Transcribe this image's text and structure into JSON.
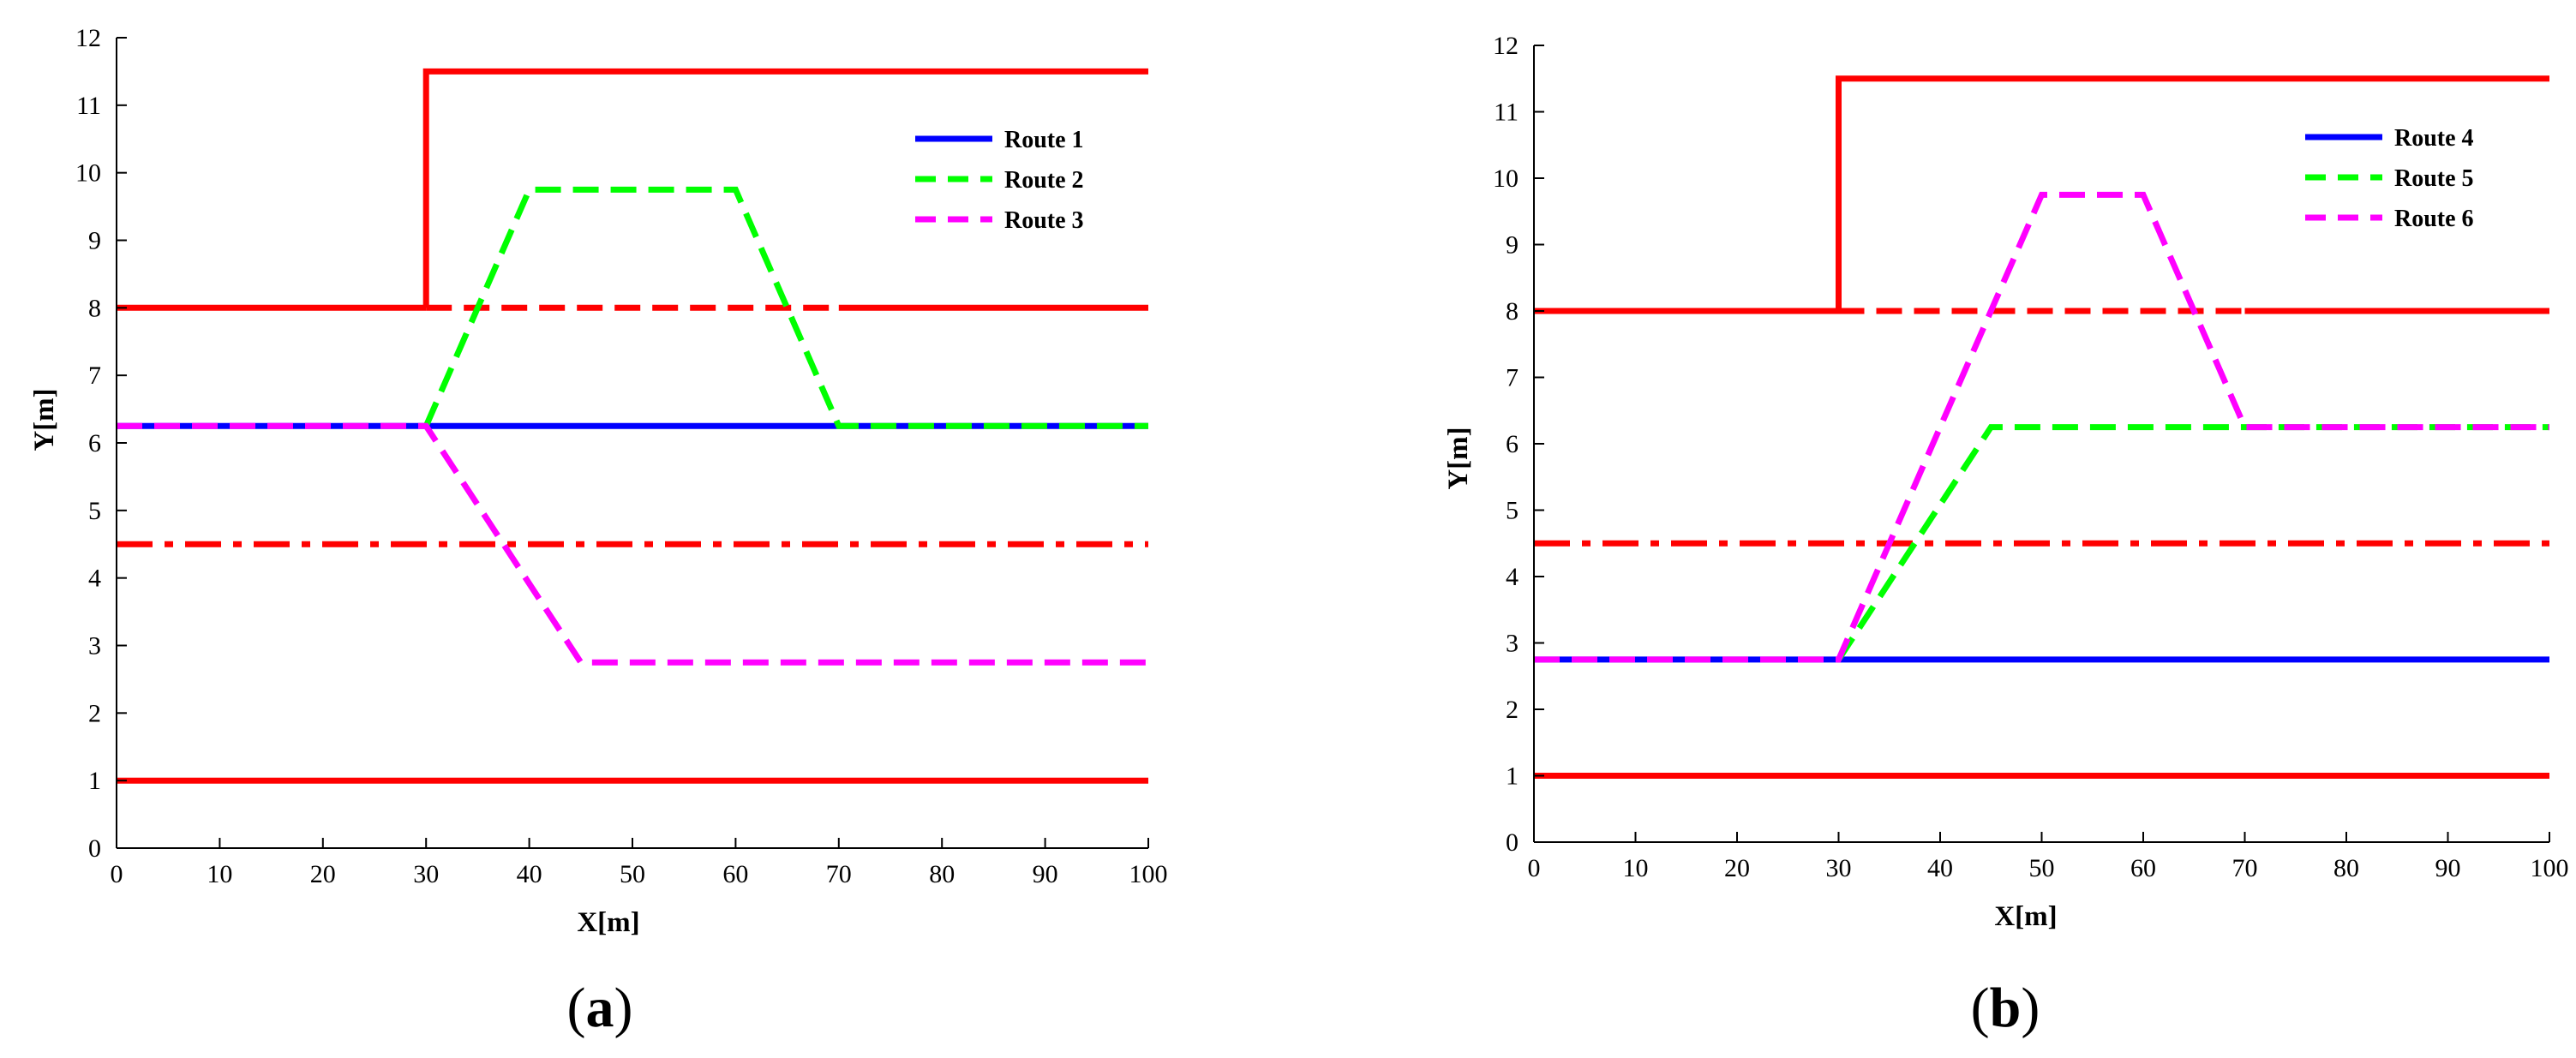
{
  "chart_data": [
    {
      "type": "line",
      "panel_label": "a",
      "xlabel": "X[m]",
      "ylabel": "Y[m]",
      "xlim": [
        0,
        100
      ],
      "ylim": [
        0,
        12
      ],
      "xticks": [
        0,
        10,
        20,
        30,
        40,
        50,
        60,
        70,
        80,
        90,
        100
      ],
      "yticks": [
        0,
        1,
        2,
        3,
        4,
        5,
        6,
        7,
        8,
        9,
        10,
        11,
        12
      ],
      "grid": false,
      "legend_position": "top-right",
      "lane_lines": [
        {
          "style": "solid",
          "color": "#ff0000",
          "x": [
            0,
            100
          ],
          "y": [
            1,
            1
          ]
        },
        {
          "style": "dashdot",
          "color": "#ff0000",
          "x": [
            0,
            100
          ],
          "y": [
            4.5,
            4.5
          ]
        },
        {
          "style": "solid",
          "color": "#ff0000",
          "x": [
            0,
            30
          ],
          "y": [
            8,
            8
          ]
        },
        {
          "style": "dashed",
          "color": "#ff0000",
          "x": [
            30,
            70
          ],
          "y": [
            8,
            8
          ]
        },
        {
          "style": "solid",
          "color": "#ff0000",
          "x": [
            70,
            100
          ],
          "y": [
            8,
            8
          ]
        },
        {
          "style": "solid",
          "color": "#ff0000",
          "x": [
            30,
            30,
            100
          ],
          "y": [
            8,
            11.5,
            11.5
          ]
        }
      ],
      "series": [
        {
          "name": "Route 1",
          "color": "#0000ff",
          "style": "solid",
          "x": [
            0,
            100
          ],
          "y": [
            6.25,
            6.25
          ]
        },
        {
          "name": "Route 2",
          "color": "#00ff00",
          "style": "dashed",
          "x": [
            30,
            40,
            60,
            70,
            100
          ],
          "y": [
            6.25,
            9.75,
            9.75,
            6.25,
            6.25
          ]
        },
        {
          "name": "Route 3",
          "color": "#ff00ff",
          "style": "dashed",
          "x": [
            0,
            30,
            45,
            100
          ],
          "y": [
            6.25,
            6.25,
            2.75,
            2.75
          ]
        }
      ]
    },
    {
      "type": "line",
      "panel_label": "b",
      "xlabel": "X[m]",
      "ylabel": "Y[m]",
      "xlim": [
        0,
        100
      ],
      "ylim": [
        0,
        12
      ],
      "xticks": [
        0,
        10,
        20,
        30,
        40,
        50,
        60,
        70,
        80,
        90,
        100
      ],
      "yticks": [
        0,
        1,
        2,
        3,
        4,
        5,
        6,
        7,
        8,
        9,
        10,
        11,
        12
      ],
      "grid": false,
      "legend_position": "top-right",
      "lane_lines": [
        {
          "style": "solid",
          "color": "#ff0000",
          "x": [
            0,
            100
          ],
          "y": [
            1,
            1
          ]
        },
        {
          "style": "dashdot",
          "color": "#ff0000",
          "x": [
            0,
            100
          ],
          "y": [
            4.5,
            4.5
          ]
        },
        {
          "style": "solid",
          "color": "#ff0000",
          "x": [
            0,
            30
          ],
          "y": [
            8,
            8
          ]
        },
        {
          "style": "dashed",
          "color": "#ff0000",
          "x": [
            30,
            70
          ],
          "y": [
            8,
            8
          ]
        },
        {
          "style": "solid",
          "color": "#ff0000",
          "x": [
            70,
            100
          ],
          "y": [
            8,
            8
          ]
        },
        {
          "style": "solid",
          "color": "#ff0000",
          "x": [
            30,
            30,
            100
          ],
          "y": [
            8,
            11.5,
            11.5
          ]
        }
      ],
      "series": [
        {
          "name": "Route 4",
          "color": "#0000ff",
          "style": "solid",
          "x": [
            0,
            100
          ],
          "y": [
            2.75,
            2.75
          ]
        },
        {
          "name": "Route 5",
          "color": "#00ff00",
          "style": "dashed",
          "x": [
            30,
            45,
            100
          ],
          "y": [
            2.75,
            6.25,
            6.25
          ]
        },
        {
          "name": "Route 6",
          "color": "#ff00ff",
          "style": "dashed",
          "x": [
            0,
            30,
            50,
            60,
            70,
            100
          ],
          "y": [
            2.75,
            2.75,
            9.75,
            9.75,
            6.25,
            6.25
          ]
        }
      ]
    }
  ]
}
